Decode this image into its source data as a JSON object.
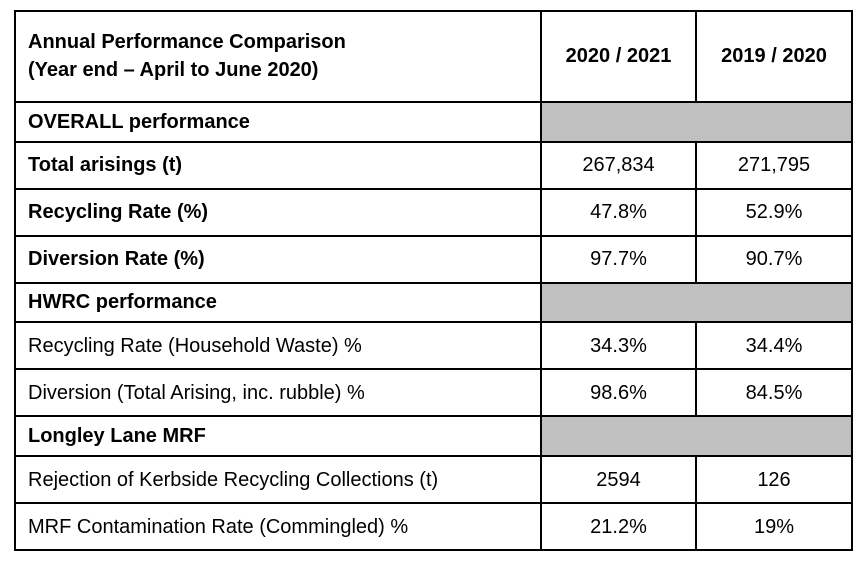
{
  "table": {
    "title_line1": "Annual Performance Comparison",
    "title_line2": "(Year end – April to June 2020)",
    "columns": [
      "2020 / 2021",
      "2019 / 2020"
    ],
    "sections": [
      {
        "heading": "OVERALL performance",
        "rows": [
          {
            "label": "Total arisings (t)",
            "values": [
              "267,834",
              "271,795"
            ]
          },
          {
            "label": "Recycling Rate (%)",
            "values": [
              "47.8%",
              "52.9%"
            ]
          },
          {
            "label": "Diversion Rate (%)",
            "values": [
              "97.7%",
              "90.7%"
            ]
          }
        ]
      },
      {
        "heading": "HWRC performance",
        "rows": [
          {
            "label": "Recycling Rate (Household Waste) %",
            "values": [
              "34.3%",
              "34.4%"
            ]
          },
          {
            "label": "Diversion (Total Arising, inc. rubble) %",
            "values": [
              "98.6%",
              "84.5%"
            ]
          }
        ]
      },
      {
        "heading": "Longley Lane MRF",
        "rows": [
          {
            "label": "Rejection of Kerbside Recycling Collections (t)",
            "values": [
              "2594",
              "126"
            ]
          },
          {
            "label": "MRF Contamination Rate (Commingled) %",
            "values": [
              "21.2%",
              "19%"
            ]
          }
        ]
      }
    ],
    "shading_color": "#c0c0c0"
  }
}
